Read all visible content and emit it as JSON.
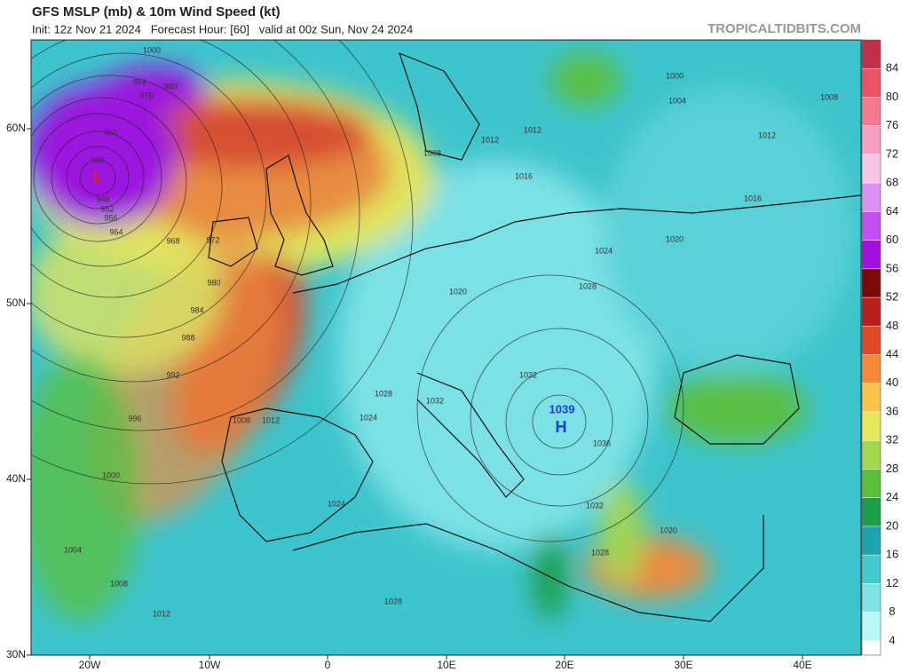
{
  "header": {
    "title": "GFS MSLP (mb) & 10m Wind Speed (kt)",
    "subtitle": "Init: 12z Nov 21 2024   Forecast Hour: [60]   valid at 00z Sun, Nov 24 2024",
    "site": "TROPICALTIDBITS.COM"
  },
  "map": {
    "lon_labels": [
      "20W",
      "10W",
      "0",
      "10E",
      "20E",
      "30E",
      "40E"
    ],
    "lat_labels": [
      "60N",
      "50N",
      "40N",
      "30N"
    ],
    "isobar_labels": [
      "1000",
      "984",
      "976",
      "980",
      "960",
      "936",
      "948",
      "952",
      "956",
      "964",
      "968",
      "972",
      "980",
      "984",
      "988",
      "992",
      "996",
      "1000",
      "1004",
      "1008",
      "1012",
      "1008",
      "1012",
      "1012",
      "1016",
      "1020",
      "1024",
      "1028",
      "1020",
      "1016",
      "1012",
      "1008",
      "1004",
      "1000",
      "1028",
      "1032",
      "1032",
      "1024",
      "1008",
      "1012",
      "1024",
      "1028",
      "1036",
      "1032",
      "1028",
      "1020"
    ],
    "high": {
      "label": "H",
      "pressure": "1039"
    },
    "low": {
      "label": "L"
    }
  },
  "colorbar": {
    "range": [
      2,
      88
    ],
    "ticks": [
      4,
      8,
      12,
      16,
      20,
      24,
      28,
      32,
      36,
      40,
      44,
      48,
      52,
      56,
      60,
      64,
      68,
      72,
      76,
      80,
      84
    ],
    "colors": [
      "#ffffff",
      "#bdf6f6",
      "#7fe3e6",
      "#44c9cf",
      "#1fa3ad",
      "#1e9e4a",
      "#5bbf3c",
      "#a6d64e",
      "#e8e65a",
      "#f7c34a",
      "#f28a3a",
      "#e04a2a",
      "#b8201c",
      "#7a0a0a",
      "#a010e0",
      "#c050f0",
      "#dc90f4",
      "#f6c6e6",
      "#f6a0c0",
      "#f47a90",
      "#ea5468",
      "#c0304a"
    ]
  }
}
